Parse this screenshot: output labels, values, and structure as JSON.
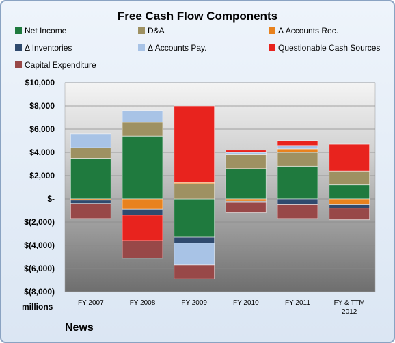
{
  "chart_data": {
    "type": "bar",
    "stacked": true,
    "title": "Free Cash Flow Components",
    "categories": [
      "FY 2007",
      "FY 2008",
      "FY 2009",
      "FY 2010",
      "FY 2011",
      "FY & TTM 2012"
    ],
    "series": [
      {
        "name": "Net Income",
        "color": "#1f7a3e",
        "values": [
          3500,
          5400,
          -3300,
          2600,
          2800,
          1200
        ]
      },
      {
        "name": "D&A",
        "color": "#9e9162",
        "values": [
          900,
          1200,
          1300,
          1200,
          1200,
          1200
        ]
      },
      {
        "name": "Δ Accounts Rec.",
        "color": "#e8821e",
        "values": [
          -100,
          -900,
          100,
          -200,
          300,
          -500
        ]
      },
      {
        "name": "Δ Inventories",
        "color": "#2f4a6e",
        "values": [
          -300,
          -500,
          -500,
          -100,
          -500,
          -300
        ]
      },
      {
        "name": "Δ Accounts Pay.",
        "color": "#a8c3e6",
        "values": [
          1200,
          1000,
          -1900,
          200,
          300,
          0
        ]
      },
      {
        "name": "Questionable Cash Sources",
        "color": "#e8231e",
        "values": [
          0,
          -2200,
          6600,
          200,
          400,
          2300
        ]
      },
      {
        "name": "Capital Expenditure",
        "color": "#984848",
        "values": [
          -1300,
          -1500,
          -1200,
          -900,
          -1200,
          -1000
        ]
      }
    ],
    "ylim": [
      -8000,
      10000
    ],
    "yticks": [
      10000,
      8000,
      6000,
      4000,
      2000,
      0,
      -2000,
      -4000,
      -6000,
      -8000
    ],
    "ytick_labels": [
      "$10,000",
      "$8,000",
      "$6,000",
      "$4,000",
      "$2,000",
      "$-",
      "$(2,000)",
      "$(4,000)",
      "$(6,000)",
      "$(8,000)"
    ],
    "ylabel": "millions",
    "legend_position": "top",
    "grid": true
  },
  "units_label": "millions",
  "source_label": "News",
  "colors": {
    "background": "#dbe6f3",
    "plot_top": "#eeeeee",
    "plot_bottom": "#7a7a7a"
  }
}
